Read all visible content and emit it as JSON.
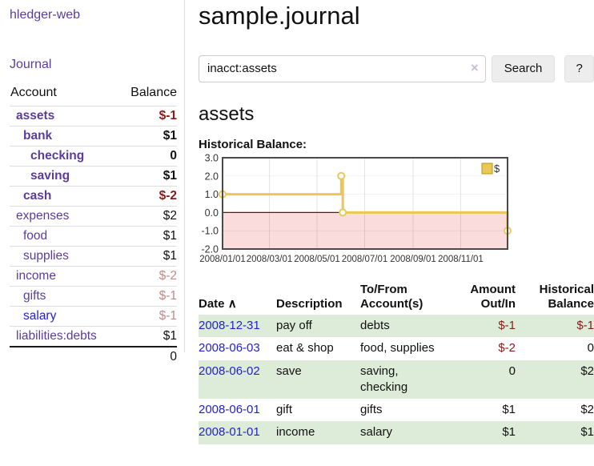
{
  "colors": {
    "link_purple": "#5b3c9c",
    "link_blue": "#2222cc",
    "negative_strong": "#8b1a1a",
    "negative_weak": "#c28a8a",
    "row_green": "#ddecd9",
    "chart_gold": "#e9c758",
    "chart_pink": "#fadcdc",
    "chart_zero_red": "#8b0000"
  },
  "brand": "hledger-web",
  "nav": {
    "journal": "Journal"
  },
  "sidebar": {
    "account_header": "Account",
    "balance_header": "Balance",
    "accounts": [
      {
        "name": "assets",
        "level": 1,
        "bold": true,
        "link_color": "acct-purple",
        "balance": "$-1",
        "balance_style": "neg-strong"
      },
      {
        "name": "bank",
        "level": 2,
        "bold": true,
        "link_color": "acct-purple",
        "balance": "$1",
        "balance_style": "plain"
      },
      {
        "name": "checking",
        "level": 3,
        "bold": true,
        "link_color": "acct-purple",
        "balance": "0",
        "balance_style": "plain"
      },
      {
        "name": "saving",
        "level": 3,
        "bold": true,
        "link_color": "acct-purple",
        "balance": "$1",
        "balance_style": "plain"
      },
      {
        "name": "cash",
        "level": 2,
        "bold": true,
        "link_color": "acct-purple",
        "balance": "$-2",
        "balance_style": "neg-strong"
      },
      {
        "name": "expenses",
        "level": 1,
        "bold": false,
        "link_color": "acct-purple",
        "balance": "$2",
        "balance_style": "plain"
      },
      {
        "name": "food",
        "level": 2,
        "bold": false,
        "link_color": "acct-purple",
        "balance": "$1",
        "balance_style": "plain"
      },
      {
        "name": "supplies",
        "level": 2,
        "bold": false,
        "link_color": "acct-purple",
        "balance": "$1",
        "balance_style": "plain"
      },
      {
        "name": "income",
        "level": 1,
        "bold": false,
        "link_color": "acct-purple",
        "balance": "$-2",
        "balance_style": "neg-weak"
      },
      {
        "name": "gifts",
        "level": 2,
        "bold": false,
        "link_color": "acct-purple",
        "balance": "$-1",
        "balance_style": "neg-weak"
      },
      {
        "name": "salary",
        "level": 2,
        "bold": false,
        "link_color": "acct-blue",
        "balance": "$-1",
        "balance_style": "neg-weak"
      },
      {
        "name": "liabilities:debts",
        "level": 1,
        "bold": false,
        "link_color": "acct-purple",
        "balance": "$1",
        "balance_style": "plain"
      }
    ],
    "total": "0"
  },
  "main": {
    "title": "sample.journal",
    "search": {
      "value": "inacct:assets",
      "clear_icon": "×",
      "button": "Search",
      "help_button": "?"
    },
    "account_heading": "assets",
    "chart_label": "Historical Balance:"
  },
  "chart_data": {
    "type": "line",
    "title": "Historical Balance:",
    "step": "after",
    "series": [
      {
        "name": "$",
        "color": "#e9c758",
        "points": [
          [
            "2008-01-01",
            1
          ],
          [
            "2008-06-01",
            2
          ],
          [
            "2008-06-03",
            0
          ],
          [
            "2008-12-31",
            -1
          ]
        ]
      }
    ],
    "x_ticks": [
      "2008/01/01",
      "2008/03/01",
      "2008/05/01",
      "2008/07/01",
      "2008/09/01",
      "2008/11/01"
    ],
    "y_ticks": [
      3.0,
      2.0,
      1.0,
      0.0,
      -1.0,
      -2.0
    ],
    "ylim": [
      -2,
      3
    ],
    "xlim": [
      "2008-01-01",
      "2008-12-31"
    ],
    "grid": true,
    "negative_region_color": "#fadcdc",
    "zero_line_color": "#8b0000",
    "legend": {
      "label": "$",
      "position": "top-right"
    }
  },
  "transactions": {
    "headers": {
      "date": "Date",
      "sort_arrow": "∧",
      "description": "Description",
      "accounts": "To/From Account(s)",
      "amount": "Amount Out/In",
      "balance": "Historical Balance"
    },
    "rows": [
      {
        "date": "2008-12-31",
        "description": "pay off",
        "accounts": "debts",
        "amount": "$-1",
        "amount_style": "neg-strong",
        "balance": "$-1",
        "balance_style": "neg-strong"
      },
      {
        "date": "2008-06-03",
        "description": "eat & shop",
        "accounts": "food, supplies",
        "amount": "$-2",
        "amount_style": "neg-strong",
        "balance": "0",
        "balance_style": "plain"
      },
      {
        "date": "2008-06-02",
        "description": "save",
        "accounts": "saving, checking",
        "amount": "0",
        "amount_style": "plain",
        "balance": "$2",
        "balance_style": "plain"
      },
      {
        "date": "2008-06-01",
        "description": "gift",
        "accounts": "gifts",
        "amount": "$1",
        "amount_style": "plain",
        "balance": "$2",
        "balance_style": "plain"
      },
      {
        "date": "2008-01-01",
        "description": "income",
        "accounts": "salary",
        "amount": "$1",
        "amount_style": "plain",
        "balance": "$1",
        "balance_style": "plain"
      }
    ]
  }
}
